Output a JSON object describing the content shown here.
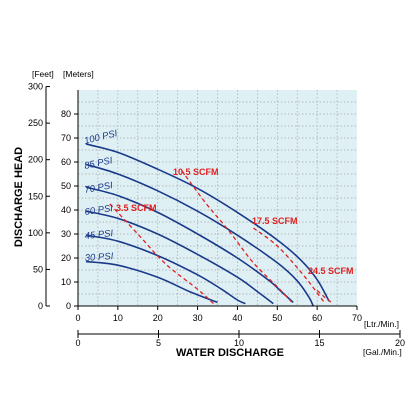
{
  "chart_data": {
    "type": "line",
    "title": "",
    "xlabel": "WATER DISCHARGE",
    "ylabel": "DISCHARGE HEAD",
    "x_unit_primary": "[Ltr./Min.]",
    "x_unit_secondary": "[Gal./Min.]",
    "y_unit_feet": "[Feet]",
    "y_unit_meters": "[Meters]",
    "xlim": [
      0,
      70
    ],
    "ylim_meters": [
      0,
      90
    ],
    "ylim_feet": [
      0,
      300
    ],
    "x_ticks_ltr": [
      "0",
      "10",
      "20",
      "30",
      "40",
      "50",
      "60",
      "70"
    ],
    "x_ticks_gal": [
      "0",
      "5",
      "10",
      "15",
      "20"
    ],
    "y_ticks_meters": [
      "0",
      "10",
      "20",
      "30",
      "40",
      "50",
      "60",
      "70",
      "80"
    ],
    "y_ticks_feet": [
      "0",
      "50",
      "100",
      "150",
      "200",
      "250",
      "300"
    ],
    "grid": true,
    "colors": {
      "psi_curve": "#1a3a8a",
      "scfm_curve": "#e02020",
      "plot_background": "#dff0f5",
      "grid": "#a6a6a6"
    },
    "series": [
      {
        "name": "100 PSI",
        "points": [
          [
            2,
            67.5
          ],
          [
            10,
            64
          ],
          [
            20,
            57
          ],
          [
            30,
            49
          ],
          [
            40,
            39
          ],
          [
            50,
            27.5
          ],
          [
            56,
            19
          ],
          [
            60,
            11
          ],
          [
            63,
            2
          ]
        ]
      },
      {
        "name": "85 PSI",
        "points": [
          [
            2,
            59
          ],
          [
            10,
            55
          ],
          [
            20,
            48
          ],
          [
            30,
            39.5
          ],
          [
            40,
            29.5
          ],
          [
            50,
            18
          ],
          [
            55,
            10.5
          ],
          [
            58,
            3.5
          ],
          [
            59,
            0
          ]
        ]
      },
      {
        "name": "70 PSI",
        "points": [
          [
            2,
            49.5
          ],
          [
            10,
            46
          ],
          [
            20,
            39
          ],
          [
            30,
            30
          ],
          [
            40,
            20
          ],
          [
            48,
            10.5
          ],
          [
            51,
            6
          ],
          [
            54,
            1.5
          ]
        ]
      },
      {
        "name": "60 PSI",
        "points": [
          [
            2,
            39.5
          ],
          [
            10,
            36.5
          ],
          [
            20,
            30
          ],
          [
            30,
            21.5
          ],
          [
            40,
            12
          ],
          [
            45,
            6
          ],
          [
            49,
            1
          ]
        ]
      },
      {
        "name": "45 PSI",
        "points": [
          [
            2,
            29.5
          ],
          [
            10,
            27
          ],
          [
            20,
            21
          ],
          [
            30,
            13
          ],
          [
            36,
            7
          ],
          [
            40,
            2.5
          ],
          [
            42,
            1
          ]
        ]
      },
      {
        "name": "30 PSI",
        "points": [
          [
            2,
            18.5
          ],
          [
            10,
            17
          ],
          [
            20,
            12
          ],
          [
            28,
            6
          ],
          [
            35,
            1.5
          ]
        ]
      }
    ],
    "air_consumption_lines": [
      {
        "name": "3.5 SCFM",
        "points": [
          [
            8,
            42.5
          ],
          [
            15,
            30
          ],
          [
            22,
            17.5
          ],
          [
            30,
            7
          ],
          [
            34,
            1
          ]
        ]
      },
      {
        "name": "10.5 SCFM",
        "points": [
          [
            26,
            56.5
          ],
          [
            32,
            43
          ],
          [
            38,
            31
          ],
          [
            44,
            18
          ],
          [
            50,
            8
          ],
          [
            54,
            1
          ]
        ]
      },
      {
        "name": "17.5 SCFM",
        "points": [
          [
            44,
            32.5
          ],
          [
            50,
            25
          ],
          [
            56,
            14
          ],
          [
            60,
            5.5
          ],
          [
            62,
            1
          ]
        ]
      },
      {
        "name": "24.5 SCFM",
        "points": [
          [
            60,
            6.5
          ],
          [
            62,
            3.5
          ],
          [
            64,
            1
          ]
        ]
      }
    ],
    "labels": {
      "100 PSI": "100 PSI",
      "85 PSI": "85 PSI",
      "70 PSI": "70 PSI",
      "60 PSI": "60 PSI",
      "45 PSI": "45 PSI",
      "30 PSI": "30 PSI",
      "3.5 SCFM": "3.5 SCFM",
      "10.5 SCFM": "10.5 SCFM",
      "17.5 SCFM": "17.5 SCFM",
      "24.5 SCFM": "24.5 SCFM"
    }
  }
}
